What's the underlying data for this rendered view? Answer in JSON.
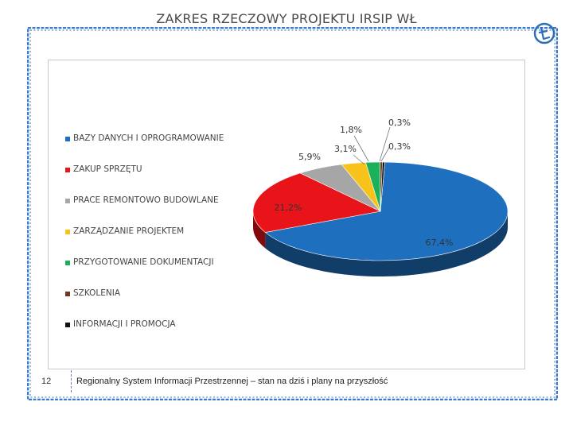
{
  "chart_data": {
    "type": "pie",
    "title": "ZAKRES RZECZOWY PROJEKTU IRSIP WŁ",
    "legend_position": "left",
    "slices": [
      {
        "label": "BAZY DANYCH I OPROGRAMOWANIE",
        "value": 67.4,
        "value_label": "67,4%",
        "color": "#1f6fbf"
      },
      {
        "label": "ZAKUP SPRZĘTU",
        "value": 21.2,
        "value_label": "21,2%",
        "color": "#e8141a"
      },
      {
        "label": "PRACE REMONTOWO BUDOWLANE",
        "value": 5.9,
        "value_label": "5,9%",
        "color": "#a6a6a6"
      },
      {
        "label": "ZARZĄDZANIE PROJEKTEM",
        "value": 3.1,
        "value_label": "3,1%",
        "color": "#f7c21a"
      },
      {
        "label": "PRZYGOTOWANIE DOKUMENTACJI",
        "value": 1.8,
        "value_label": "1,8%",
        "color": "#1db05a"
      },
      {
        "label": "SZKOLENIA",
        "value": 0.3,
        "value_label": "0,3%",
        "color": "#6b3a1f"
      },
      {
        "label": "INFORMACJI I PROMOCJA",
        "value": 0.3,
        "value_label": "0,3%",
        "color": "#111111"
      }
    ]
  },
  "footer": {
    "page_number": "12",
    "text": "Regionalny System Informacji Przestrzennej – stan na dziś i plany na przyszłość"
  },
  "colors": {
    "frame_accent": "#3a78c8",
    "logo": "#2a6fb8"
  }
}
